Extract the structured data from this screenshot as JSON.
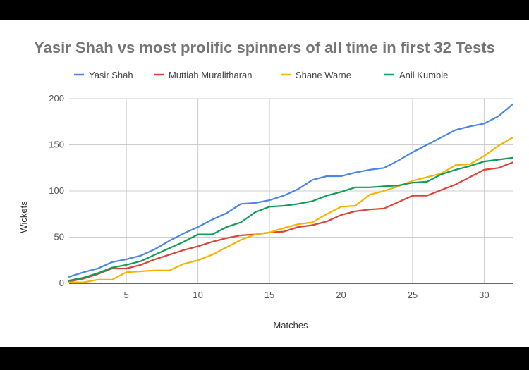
{
  "chart_data": {
    "type": "line",
    "title": "Yasir Shah vs most prolific spinners of all time in first 32 Tests",
    "xlabel": "Matches",
    "ylabel": "Wickets",
    "xlim": [
      1,
      32
    ],
    "ylim": [
      0,
      200
    ],
    "xticks": [
      5,
      10,
      15,
      20,
      25,
      30
    ],
    "yticks": [
      0,
      50,
      100,
      150,
      200
    ],
    "grid": true,
    "legend_position": "top",
    "x": [
      1,
      2,
      3,
      4,
      5,
      6,
      7,
      8,
      9,
      10,
      11,
      12,
      13,
      14,
      15,
      16,
      17,
      18,
      19,
      20,
      21,
      22,
      23,
      24,
      25,
      26,
      27,
      28,
      29,
      30,
      31,
      32
    ],
    "series": [
      {
        "name": "Yasir Shah",
        "color": "#4a86e8",
        "values": [
          7,
          12,
          16,
          23,
          26,
          30,
          37,
          46,
          54,
          61,
          69,
          76,
          86,
          87,
          90,
          95,
          102,
          112,
          116,
          116,
          120,
          123,
          125,
          133,
          142,
          150,
          158,
          166,
          170,
          173,
          181,
          194
        ]
      },
      {
        "name": "Muttiah Muralitharan",
        "color": "#db4437",
        "values": [
          2,
          5,
          10,
          16,
          16,
          20,
          26,
          31,
          36,
          40,
          45,
          49,
          52,
          53,
          55,
          56,
          61,
          63,
          67,
          74,
          78,
          80,
          81,
          88,
          95,
          95,
          101,
          107,
          115,
          123,
          125,
          131
        ]
      },
      {
        "name": "Shane Warne",
        "color": "#f4b400",
        "values": [
          1,
          1,
          4,
          4,
          12,
          13,
          14,
          14,
          21,
          25,
          31,
          39,
          47,
          53,
          55,
          60,
          64,
          66,
          75,
          83,
          84,
          96,
          100,
          105,
          111,
          115,
          119,
          128,
          129,
          138,
          149,
          158
        ]
      },
      {
        "name": "Anil Kumble",
        "color": "#0f9d58",
        "values": [
          3,
          6,
          11,
          17,
          20,
          24,
          31,
          38,
          45,
          53,
          53,
          61,
          66,
          77,
          83,
          84,
          86,
          89,
          95,
          99,
          104,
          104,
          105,
          106,
          109,
          110,
          118,
          123,
          127,
          132,
          134,
          136
        ]
      }
    ]
  }
}
